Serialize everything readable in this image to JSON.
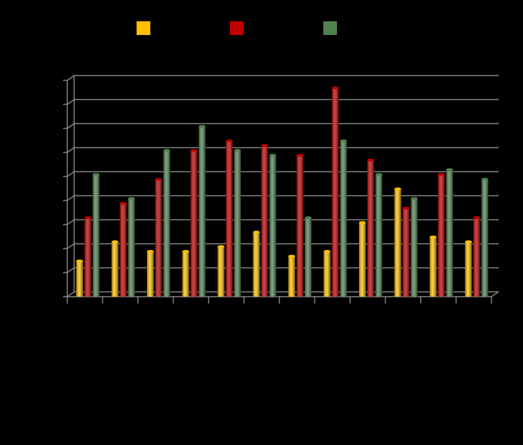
{
  "chart_data": {
    "type": "bar",
    "categories": [
      null,
      null,
      null,
      null,
      null,
      null,
      null,
      null,
      null,
      null,
      null,
      null
    ],
    "series": [
      {
        "color": "#ffc000",
        "values": [
          1.4,
          2.2,
          1.8,
          1.8,
          2.0,
          2.6,
          1.6,
          1.8,
          3.0,
          4.4,
          2.4,
          2.2
        ]
      },
      {
        "color": "#c00000",
        "values": [
          3.2,
          3.8,
          4.8,
          6.0,
          6.4,
          6.2,
          5.8,
          8.6,
          5.6,
          3.6,
          5.0,
          3.2
        ]
      },
      {
        "color": "#4f8050",
        "values": [
          5.0,
          4.0,
          6.0,
          7.0,
          6.0,
          5.8,
          3.2,
          6.4,
          5.0,
          4.0,
          5.2,
          4.8
        ]
      }
    ],
    "ylim": [
      0,
      9
    ],
    "yticks": [
      0,
      1,
      2,
      3,
      4,
      5,
      6,
      7,
      8,
      9
    ],
    "grid": true
  }
}
